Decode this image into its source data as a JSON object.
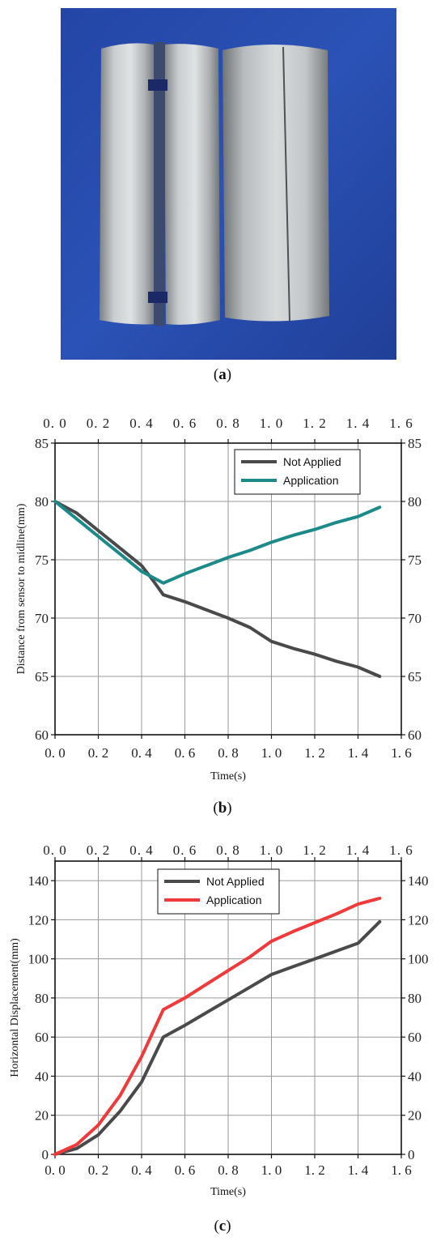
{
  "figure": {
    "captions": {
      "a": "(a)",
      "b": "(b)",
      "c": "(c)"
    }
  },
  "photo": {
    "background_color": "#2a4fb0",
    "metal_color": "#b9bdbf"
  },
  "chart_data": [
    {
      "type": "line",
      "panel": "b",
      "title": "",
      "xlabel": "Time(s)",
      "ylabel": "Distance from sensor to midline(mm)",
      "xlim": [
        0.0,
        1.6
      ],
      "ylim": [
        60,
        85
      ],
      "x_ticks": [
        0.0,
        0.2,
        0.4,
        0.6,
        0.8,
        1.0,
        1.2,
        1.4,
        1.6
      ],
      "y_ticks": [
        60,
        65,
        70,
        75,
        80,
        85
      ],
      "grid": true,
      "legend_position": "top-right",
      "mirror_axes": true,
      "series": [
        {
          "name": "Not Applied",
          "color": "#4a4a4c",
          "x": [
            0.0,
            0.1,
            0.2,
            0.3,
            0.4,
            0.45,
            0.5,
            0.6,
            0.7,
            0.8,
            0.9,
            1.0,
            1.1,
            1.2,
            1.3,
            1.4,
            1.5
          ],
          "y": [
            80.0,
            79.0,
            77.5,
            76.0,
            74.5,
            73.3,
            72.0,
            71.4,
            70.7,
            70.0,
            69.2,
            68.0,
            67.4,
            66.9,
            66.3,
            65.8,
            65.0
          ]
        },
        {
          "name": "Application",
          "color": "#1d8a8a",
          "x": [
            0.0,
            0.1,
            0.2,
            0.3,
            0.4,
            0.5,
            0.6,
            0.7,
            0.8,
            0.9,
            1.0,
            1.1,
            1.2,
            1.3,
            1.4,
            1.5
          ],
          "y": [
            80.0,
            78.5,
            77.0,
            75.5,
            74.0,
            73.0,
            73.8,
            74.5,
            75.2,
            75.8,
            76.5,
            77.1,
            77.6,
            78.2,
            78.7,
            79.5
          ]
        }
      ]
    },
    {
      "type": "line",
      "panel": "c",
      "title": "",
      "xlabel": "Time(s)",
      "ylabel": "Horizontal Displacement(mm)",
      "xlim": [
        0.0,
        1.6
      ],
      "ylim": [
        0,
        150
      ],
      "x_ticks": [
        0.0,
        0.2,
        0.4,
        0.6,
        0.8,
        1.0,
        1.2,
        1.4,
        1.6
      ],
      "y_ticks": [
        0,
        20,
        40,
        60,
        80,
        100,
        120,
        140
      ],
      "grid": true,
      "legend_position": "top-center",
      "mirror_axes": true,
      "series": [
        {
          "name": "Not Applied",
          "color": "#4a4a4c",
          "x": [
            0.0,
            0.1,
            0.2,
            0.3,
            0.4,
            0.5,
            0.6,
            0.7,
            0.8,
            0.9,
            1.0,
            1.1,
            1.2,
            1.3,
            1.4,
            1.5
          ],
          "y": [
            0,
            3,
            10,
            22,
            37,
            60,
            66,
            72.5,
            79,
            85.5,
            92,
            96,
            100,
            104,
            108,
            119
          ]
        },
        {
          "name": "Application",
          "color": "#ee3a3a",
          "x": [
            0.0,
            0.1,
            0.2,
            0.3,
            0.4,
            0.5,
            0.6,
            0.7,
            0.8,
            0.9,
            1.0,
            1.1,
            1.2,
            1.3,
            1.4,
            1.5
          ],
          "y": [
            0,
            5,
            15,
            30,
            50,
            74,
            80,
            87,
            94,
            101,
            109,
            114,
            118.5,
            123,
            128,
            131
          ]
        }
      ]
    }
  ]
}
